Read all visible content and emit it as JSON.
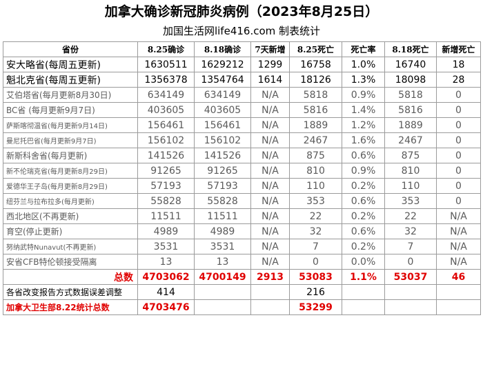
{
  "title": "加拿大确诊新冠肺炎病例（2023年8月25日）",
  "subtitle": "加国生活网life416.com 制表统计",
  "headers": [
    "省份",
    "8.25确诊",
    "8.18确诊",
    "7天新增",
    "8.25死亡",
    "死亡率",
    "8.18死亡",
    "新增死亡"
  ],
  "rows": [
    [
      "安大略省(每周五更新)",
      "1630511",
      "1629212",
      "1299",
      "16758",
      "1.0%",
      "16740",
      "18"
    ],
    [
      "魁北克省(每周五更新)",
      "1356378",
      "1354764",
      "1614",
      "18126",
      "1.3%",
      "18098",
      "28"
    ],
    [
      "艾伯塔省(每月更新8月30日)",
      "634149",
      "634149",
      "N/A",
      "5818",
      "0.9%",
      "5818",
      "0"
    ],
    [
      "BC省 (每月更新9月7日)",
      "403605",
      "403605",
      "N/A",
      "5816",
      "1.4%",
      "5816",
      "0"
    ],
    [
      "萨斯喀彻温省(每月更新9月14日)",
      "156461",
      "156461",
      "N/A",
      "1889",
      "1.2%",
      "1889",
      "0"
    ],
    [
      "曼尼托巴省(每月更新9月7日)",
      "156102",
      "156102",
      "N/A",
      "2467",
      "1.6%",
      "2467",
      "0"
    ],
    [
      "新斯科舍省(每月更新)",
      "141526",
      "141526",
      "N/A",
      "875",
      "0.6%",
      "875",
      "0"
    ],
    [
      "新不伦瑞克省(每月更新8月29日)",
      "91265",
      "91265",
      "N/A",
      "810",
      "0.9%",
      "810",
      "0"
    ],
    [
      "爱德华王子岛(每月更新8月29日)",
      "57193",
      "57193",
      "N/A",
      "110",
      "0.2%",
      "110",
      "0"
    ],
    [
      "纽芬兰与拉布拉多(每月更新)",
      "55828",
      "55828",
      "N/A",
      "353",
      "0.6%",
      "353",
      "0"
    ],
    [
      "西北地区(不再更新)",
      "11511",
      "11511",
      "N/A",
      "22",
      "0.2%",
      "22",
      "N/A"
    ],
    [
      "育空(停止更新)",
      "4989",
      "4989",
      "N/A",
      "32",
      "0.6%",
      "32",
      "N/A"
    ],
    [
      "努纳武特Nunavut(不再更新)",
      "3531",
      "3531",
      "N/A",
      "7",
      "0.2%",
      "7",
      "N/A"
    ],
    [
      "安省CFB特伦顿接受隔离",
      "13",
      "13",
      "N/A",
      "0",
      "0.0%",
      "0",
      "N/A"
    ]
  ],
  "total": [
    "总数",
    "4703062",
    "4700149",
    "2913",
    "53083",
    "1.1%",
    "53037",
    "46"
  ],
  "adjustment": {
    "label": "各省改变报告方式数据误差调整",
    "cases": "414",
    "deaths": "216"
  },
  "health_canada": {
    "label": "加拿大卫生部8.22统计总数",
    "cases": "4703476",
    "deaths": "53299"
  }
}
